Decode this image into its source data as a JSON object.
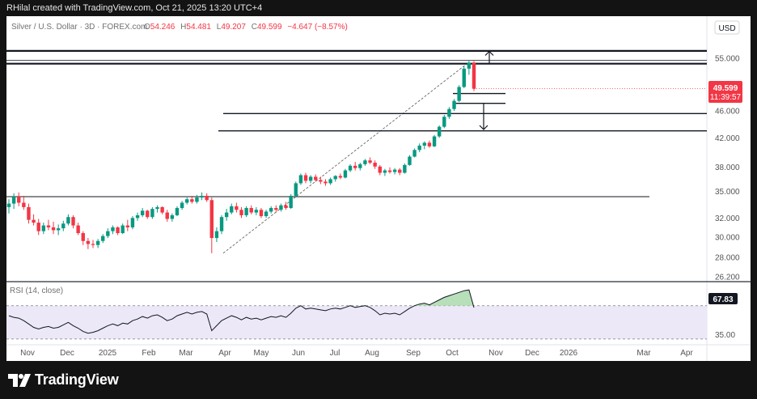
{
  "header": {
    "attribution": "RHilal created with TradingView.com, Oct 21, 2025 13:20 UTC+4"
  },
  "chart_data": {
    "type": "candlestick",
    "title": "Silver / U.S. Dollar · 3D · FOREX.com",
    "ohlc_legend": {
      "open_label": "O",
      "open": "54.246",
      "high_label": "H",
      "high": "54.481",
      "low_label": "L",
      "low": "49.207",
      "close_label": "C",
      "close": "49.599",
      "change": "−4.647 (−8.57%)"
    },
    "currency_button": "USD",
    "log_scale": true,
    "y_range": [
      25.6,
      58.0
    ],
    "y_ticks": [
      55,
      46,
      42,
      38,
      35,
      32,
      30,
      28,
      26.2
    ],
    "y_tick_labels": [
      "55.000",
      "46.000",
      "42.000",
      "38.000",
      "35.000",
      "32.000",
      "30.000",
      "28.000",
      "26.200"
    ],
    "x_tick_labels": [
      "Nov",
      "Dec",
      "2025",
      "Feb",
      "Mar",
      "Apr",
      "May",
      "Jun",
      "Jul",
      "Aug",
      "Sep",
      "Oct",
      "Nov",
      "Dec",
      "2026",
      "Mar",
      "Apr"
    ],
    "last_price": "49.599",
    "countdown": "11:39:57",
    "candle_ohlc": [
      [
        33.2,
        34.1,
        32.5,
        33.6
      ],
      [
        33.6,
        34.8,
        33.0,
        34.4
      ],
      [
        34.4,
        34.9,
        33.3,
        33.7
      ],
      [
        33.7,
        34.5,
        32.9,
        33.2
      ],
      [
        33.2,
        33.6,
        31.4,
        31.8
      ],
      [
        31.8,
        32.4,
        31.2,
        31.5
      ],
      [
        31.5,
        31.9,
        30.2,
        30.6
      ],
      [
        30.6,
        31.5,
        30.3,
        31.2
      ],
      [
        31.2,
        31.8,
        30.7,
        31.0
      ],
      [
        31.0,
        31.6,
        30.3,
        30.7
      ],
      [
        30.7,
        31.3,
        30.2,
        30.9
      ],
      [
        30.9,
        31.7,
        30.6,
        31.4
      ],
      [
        31.4,
        32.4,
        31.2,
        32.1
      ],
      [
        32.1,
        32.3,
        30.9,
        31.2
      ],
      [
        31.2,
        31.5,
        30.2,
        30.4
      ],
      [
        30.4,
        30.6,
        29.2,
        29.6
      ],
      [
        29.6,
        29.9,
        28.8,
        29.3
      ],
      [
        29.3,
        29.7,
        28.9,
        29.2
      ],
      [
        29.2,
        29.8,
        28.9,
        29.6
      ],
      [
        29.6,
        30.3,
        29.4,
        30.1
      ],
      [
        30.1,
        30.9,
        29.9,
        30.6
      ],
      [
        30.6,
        31.2,
        30.3,
        31.0
      ],
      [
        31.0,
        31.1,
        30.2,
        30.4
      ],
      [
        30.4,
        31.4,
        30.3,
        31.2
      ],
      [
        31.2,
        31.8,
        30.6,
        31.0
      ],
      [
        31.0,
        32.2,
        30.8,
        32.0
      ],
      [
        32.0,
        32.6,
        31.7,
        32.3
      ],
      [
        32.3,
        33.1,
        32.1,
        32.8
      ],
      [
        32.8,
        32.9,
        31.9,
        32.1
      ],
      [
        32.1,
        33.2,
        31.9,
        33.0
      ],
      [
        33.0,
        33.4,
        32.6,
        33.2
      ],
      [
        33.2,
        33.3,
        32.4,
        32.6
      ],
      [
        32.6,
        32.9,
        31.6,
        31.9
      ],
      [
        31.9,
        32.5,
        31.6,
        32.3
      ],
      [
        32.3,
        33.3,
        32.2,
        33.1
      ],
      [
        33.1,
        33.9,
        32.9,
        33.7
      ],
      [
        33.7,
        34.3,
        33.5,
        34.1
      ],
      [
        34.1,
        34.5,
        33.6,
        33.8
      ],
      [
        33.8,
        34.6,
        33.6,
        34.3
      ],
      [
        34.3,
        34.9,
        34.0,
        34.5
      ],
      [
        34.5,
        34.8,
        33.8,
        34.0
      ],
      [
        34.0,
        34.3,
        28.4,
        29.9
      ],
      [
        29.9,
        31.0,
        29.5,
        30.6
      ],
      [
        30.6,
        32.3,
        30.3,
        32.1
      ],
      [
        32.1,
        33.0,
        31.7,
        32.6
      ],
      [
        32.6,
        33.6,
        32.4,
        33.3
      ],
      [
        33.3,
        33.7,
        32.6,
        32.9
      ],
      [
        32.9,
        33.2,
        32.0,
        32.3
      ],
      [
        32.3,
        33.3,
        32.1,
        33.1
      ],
      [
        33.1,
        33.4,
        32.4,
        32.6
      ],
      [
        32.6,
        33.2,
        32.3,
        32.9
      ],
      [
        32.9,
        33.1,
        32.0,
        32.2
      ],
      [
        32.2,
        32.9,
        32.0,
        32.7
      ],
      [
        32.7,
        33.3,
        32.5,
        33.1
      ],
      [
        33.1,
        33.4,
        32.6,
        32.9
      ],
      [
        32.9,
        33.6,
        32.7,
        33.4
      ],
      [
        33.4,
        33.8,
        32.9,
        33.1
      ],
      [
        33.1,
        34.7,
        33.0,
        34.5
      ],
      [
        34.5,
        36.2,
        34.4,
        36.0
      ],
      [
        36.0,
        37.2,
        35.8,
        37.0
      ],
      [
        37.0,
        37.3,
        36.0,
        36.3
      ],
      [
        36.3,
        37.0,
        36.0,
        36.8
      ],
      [
        36.8,
        37.1,
        36.2,
        36.4
      ],
      [
        36.4,
        36.8,
        35.9,
        36.2
      ],
      [
        36.2,
        36.5,
        35.7,
        36.0
      ],
      [
        36.0,
        36.7,
        35.8,
        36.5
      ],
      [
        36.5,
        37.0,
        36.2,
        36.9
      ],
      [
        36.9,
        37.2,
        36.5,
        36.7
      ],
      [
        36.7,
        37.8,
        36.6,
        37.6
      ],
      [
        37.6,
        38.4,
        37.4,
        38.2
      ],
      [
        38.2,
        38.7,
        37.6,
        37.9
      ],
      [
        37.9,
        38.6,
        37.6,
        38.4
      ],
      [
        38.4,
        39.1,
        38.2,
        38.9
      ],
      [
        38.9,
        39.3,
        38.4,
        38.6
      ],
      [
        38.6,
        38.9,
        37.8,
        38.1
      ],
      [
        38.1,
        38.3,
        37.0,
        37.3
      ],
      [
        37.3,
        37.8,
        36.9,
        37.6
      ],
      [
        37.6,
        38.0,
        37.2,
        37.4
      ],
      [
        37.4,
        37.9,
        37.1,
        37.7
      ],
      [
        37.7,
        37.9,
        37.0,
        37.3
      ],
      [
        37.3,
        38.5,
        37.2,
        38.3
      ],
      [
        38.3,
        39.6,
        38.2,
        39.4
      ],
      [
        39.4,
        40.5,
        39.3,
        40.3
      ],
      [
        40.3,
        41.2,
        40.0,
        40.9
      ],
      [
        40.9,
        41.5,
        40.4,
        41.3
      ],
      [
        41.3,
        41.6,
        40.6,
        40.8
      ],
      [
        40.8,
        42.4,
        40.7,
        42.2
      ],
      [
        42.2,
        43.8,
        42.0,
        43.6
      ],
      [
        43.6,
        45.4,
        43.4,
        45.1
      ],
      [
        45.1,
        46.6,
        44.8,
        46.3
      ],
      [
        46.3,
        47.9,
        46.0,
        47.6
      ],
      [
        47.6,
        50.2,
        47.4,
        49.9
      ],
      [
        49.9,
        53.5,
        49.7,
        53.1
      ],
      [
        53.1,
        54.6,
        52.0,
        54.2
      ],
      [
        54.2,
        54.5,
        49.2,
        49.6
      ]
    ],
    "horizontal_lines": [
      56.4,
      54.0,
      48.8,
      47.2,
      45.6,
      43.0,
      34.4
    ],
    "projection_arrows": [
      {
        "direction": "up",
        "from": 54.1,
        "to": 56.3
      },
      {
        "direction": "down",
        "from": 47.2,
        "to": 43.2
      }
    ],
    "indicator": {
      "label": "RSI (14, close)",
      "range": [
        25,
        95
      ],
      "levels": [
        70,
        30
      ],
      "level_tick_label": "35.00",
      "last_value": "67.83",
      "values": [
        58,
        56,
        55,
        52,
        48,
        44,
        42,
        44,
        45,
        43,
        44,
        47,
        50,
        46,
        43,
        39,
        37,
        38,
        40,
        43,
        46,
        48,
        46,
        49,
        48,
        52,
        54,
        57,
        55,
        58,
        59,
        56,
        52,
        54,
        58,
        60,
        62,
        60,
        62,
        63,
        60,
        40,
        46,
        52,
        55,
        58,
        56,
        53,
        56,
        54,
        55,
        53,
        55,
        57,
        56,
        58,
        56,
        61,
        67,
        70,
        66,
        67,
        66,
        65,
        64,
        66,
        67,
        66,
        68,
        70,
        68,
        69,
        70,
        68,
        64,
        59,
        61,
        60,
        61,
        59,
        63,
        67,
        70,
        72,
        73,
        71,
        74,
        77,
        80,
        82,
        84,
        86,
        88,
        89,
        67.8
      ]
    }
  }
}
